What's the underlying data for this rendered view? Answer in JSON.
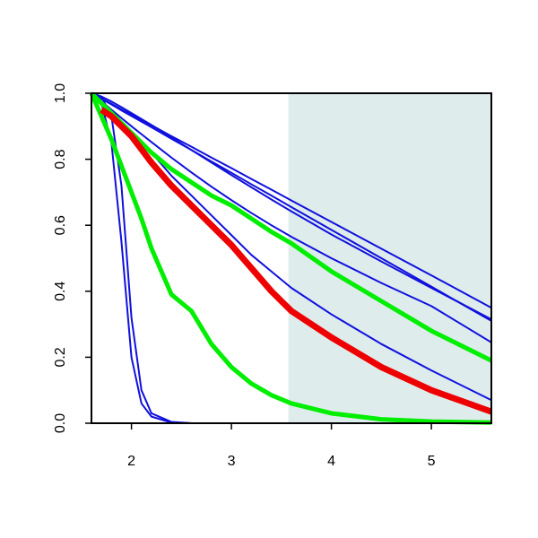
{
  "chart_data": {
    "type": "line",
    "x": [
      1.6,
      1.7,
      1.8,
      1.9,
      2.0,
      2.1,
      2.2,
      2.4,
      2.6,
      2.8,
      3.0,
      3.2,
      3.4,
      3.6,
      4.0,
      4.5,
      5.0,
      5.6
    ],
    "shade_x": [
      3.57,
      5.6
    ],
    "shade_color": "#deecec",
    "series": [
      {
        "color": "#1010dd",
        "width": 2,
        "values": [
          1,
          0.97,
          0.85,
          0.55,
          0.2,
          0.06,
          0.02,
          0.002,
          0,
          0,
          0,
          0,
          0,
          0,
          0,
          0,
          0,
          0
        ]
      },
      {
        "color": "#1010dd",
        "width": 2,
        "values": [
          1,
          0.99,
          0.93,
          0.72,
          0.32,
          0.1,
          0.03,
          0.004,
          0,
          0,
          0,
          0,
          0,
          0,
          0,
          0,
          0,
          0
        ]
      },
      {
        "color": "#1010dd",
        "width": 2,
        "values": [
          1,
          0.984,
          0.968,
          0.951,
          0.935,
          0.919,
          0.903,
          0.87,
          0.838,
          0.805,
          0.773,
          0.74,
          0.708,
          0.675,
          0.61,
          0.529,
          0.448,
          0.35
        ]
      },
      {
        "color": "#1010dd",
        "width": 2,
        "values": [
          1,
          0.983,
          0.966,
          0.948,
          0.931,
          0.914,
          0.897,
          0.862,
          0.828,
          0.793,
          0.759,
          0.724,
          0.69,
          0.655,
          0.586,
          0.5,
          0.414,
          0.31
        ]
      },
      {
        "color": "#1010dd",
        "width": 2,
        "values": [
          1,
          0.99,
          0.975,
          0.958,
          0.94,
          0.922,
          0.904,
          0.866,
          0.828,
          0.79,
          0.752,
          0.715,
          0.678,
          0.642,
          0.572,
          0.49,
          0.41,
          0.315
        ]
      },
      {
        "color": "#1010dd",
        "width": 2,
        "values": [
          1,
          0.975,
          0.95,
          0.925,
          0.9,
          0.876,
          0.852,
          0.805,
          0.76,
          0.717,
          0.676,
          0.637,
          0.6,
          0.565,
          0.5,
          0.425,
          0.355,
          0.245
        ]
      },
      {
        "color": "#1010dd",
        "width": 2,
        "values": [
          1,
          0.97,
          0.94,
          0.91,
          0.88,
          0.85,
          0.82,
          0.75,
          0.69,
          0.63,
          0.57,
          0.51,
          0.46,
          0.41,
          0.33,
          0.24,
          0.16,
          0.07
        ]
      },
      {
        "color": "#00ee00",
        "width": 5,
        "values": [
          1,
          0.97,
          0.94,
          0.91,
          0.88,
          0.85,
          0.82,
          0.77,
          0.73,
          0.69,
          0.66,
          0.62,
          0.58,
          0.545,
          0.46,
          0.37,
          0.28,
          0.19
        ]
      },
      {
        "color": "#00ee00",
        "width": 5,
        "values": [
          1,
          0.93,
          0.86,
          0.78,
          0.7,
          0.62,
          0.53,
          0.39,
          0.34,
          0.24,
          0.17,
          0.12,
          0.085,
          0.06,
          0.03,
          0.012,
          0.005,
          0.002
        ]
      },
      {
        "color": "#ee0000",
        "width": 7,
        "values": [
          null,
          0.95,
          0.93,
          0.9,
          0.87,
          0.83,
          0.79,
          0.72,
          0.66,
          0.6,
          0.54,
          0.47,
          0.4,
          0.34,
          0.26,
          0.17,
          0.1,
          0.035
        ]
      }
    ],
    "xlim": [
      1.6,
      5.6
    ],
    "xticks": [
      2,
      3,
      4,
      5
    ],
    "ylim": [
      0,
      1
    ],
    "yticks": [
      {
        "value": 0,
        "label": "0.0"
      },
      {
        "value": 0.2,
        "label": "0.2"
      },
      {
        "value": 0.4,
        "label": "0.4"
      },
      {
        "value": 0.6,
        "label": "0.6"
      },
      {
        "value": 0.8,
        "label": "0.8"
      },
      {
        "value": 1,
        "label": "1.0"
      }
    ]
  }
}
